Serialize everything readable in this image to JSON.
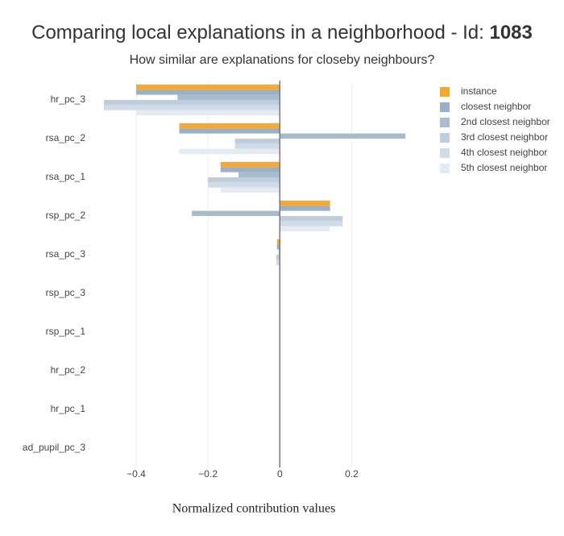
{
  "chart_data": {
    "type": "hbar",
    "title": "Comparing local explanations in a neighborhood - Id:",
    "title_id": "1083",
    "subtitle": "How similar are explanations for closeby neighbours?",
    "x_label": "Normalized contribution values",
    "categories": [
      "hr_pc_3",
      "rsa_pc_2",
      "rsa_pc_1",
      "rsp_pc_2",
      "rsa_pc_3",
      "rsp_pc_3",
      "rsp_pc_1",
      "hr_pc_2",
      "hr_pc_1",
      "ad_pupil_pc_3"
    ],
    "series": [
      {
        "name": "instance",
        "color": "#f7a82f",
        "values": [
          -0.4,
          -0.28,
          -0.165,
          0.14,
          -0.008,
          0,
          0,
          0,
          0,
          0
        ]
      },
      {
        "name": "closest neighbor",
        "color": "#98b0c9",
        "values": [
          -0.4,
          -0.28,
          -0.165,
          0.14,
          -0.008,
          0,
          0,
          0,
          0,
          0
        ]
      },
      {
        "name": "2nd closest neighbor",
        "color": "#a9bccf",
        "values": [
          -0.285,
          0.35,
          -0.115,
          -0.245,
          -0.003,
          0,
          0,
          0,
          0,
          0
        ]
      },
      {
        "name": "3rd closest neighbor",
        "color": "#bfcddc",
        "values": [
          -0.49,
          -0.125,
          -0.2,
          0.175,
          -0.01,
          0,
          0,
          0,
          0,
          0
        ]
      },
      {
        "name": "4th closest neighbor",
        "color": "#d2dce7",
        "values": [
          -0.49,
          -0.125,
          -0.2,
          0.175,
          -0.01,
          0,
          0,
          0,
          0,
          0
        ]
      },
      {
        "name": "5th closest neighbor",
        "color": "#e5ebf2",
        "values": [
          -0.4,
          -0.28,
          -0.165,
          0.14,
          -0.003,
          0,
          0,
          0,
          0,
          0
        ]
      }
    ],
    "xlim": [
      -0.51,
      0.41
    ],
    "xticks": [
      {
        "value": -0.4,
        "label": "−0.4"
      },
      {
        "value": -0.2,
        "label": "−0.2"
      },
      0,
      0.2
    ],
    "grid": true
  }
}
